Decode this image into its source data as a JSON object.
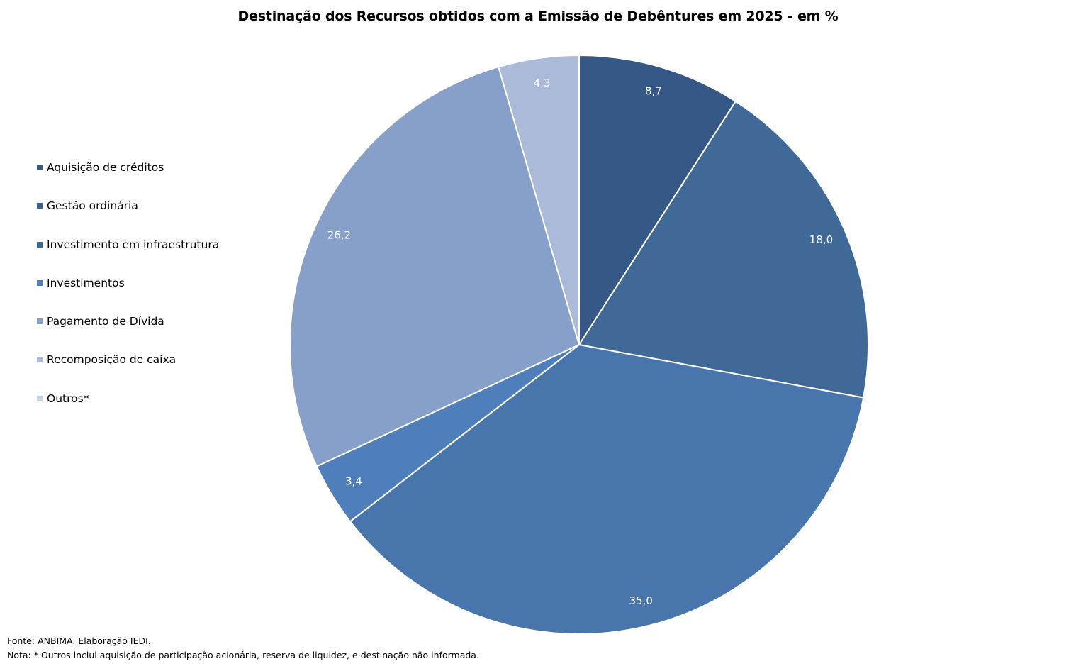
{
  "title": "Destinação dos Recursos obtidos com a Emissão de Debêntures em 2025 - em %",
  "chart_data": {
    "type": "pie",
    "title": "Destinação dos Recursos obtidos com a Emissão de Debêntures em 2025 - em %",
    "start_angle_deg": 0,
    "direction": "clockwise",
    "legend_position": "left",
    "slices": [
      {
        "name": "Aquisição de créditos",
        "value": 0.0,
        "label": "",
        "color": "#355887"
      },
      {
        "name": "Gestão ordinária",
        "value": 8.7,
        "label": "8,7",
        "color": "#355887"
      },
      {
        "name": "Investimento em infraestrutura",
        "value": 18.0,
        "label": "18,0",
        "color": "#416998"
      },
      {
        "name": "Investimentos",
        "value": 35.0,
        "label": "35,0",
        "color": "#4975ad"
      },
      {
        "name": "Pagamento de Dívida",
        "value": 3.4,
        "label": "3,4",
        "color": "#4e7fbb"
      },
      {
        "name": "Recomposição de caixa",
        "value": 26.2,
        "label": "26,2",
        "color": "#86a0ca"
      },
      {
        "name": "Outros*",
        "value": 4.3,
        "label": "4,3",
        "color": "#abbad8"
      }
    ]
  },
  "legend": {
    "items": [
      {
        "label": "Aquisição de créditos",
        "color": "#355887"
      },
      {
        "label": "Gestão ordinária",
        "color": "#3b6291"
      },
      {
        "label": "Investimento em infraestrutura",
        "color": "#416998"
      },
      {
        "label": "Investimentos",
        "color": "#4e7fbb"
      },
      {
        "label": "Pagamento de Dívida",
        "color": "#86a0ca"
      },
      {
        "label": "Recomposição de caixa",
        "color": "#abbad8"
      },
      {
        "label": "Outros*",
        "color": "#c5d0e5"
      }
    ]
  },
  "footer": {
    "source": "Fonte: ANBIMA. Elaboração IEDI.",
    "note": "Nota: * Outros inclui aquisição de participação acionária, reserva de liquidez, e destinação não informada."
  }
}
